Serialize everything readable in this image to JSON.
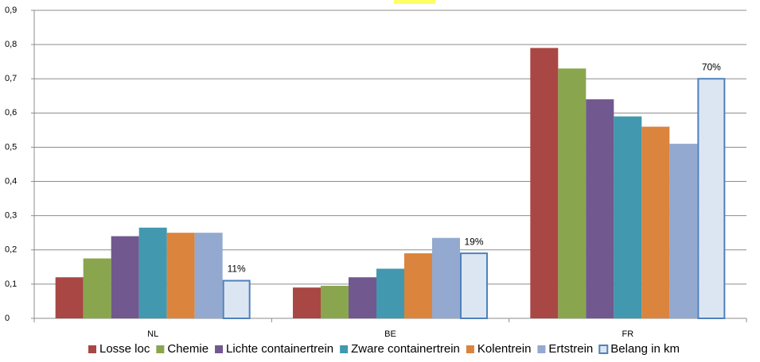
{
  "chart_data": {
    "type": "bar",
    "categories": [
      "NL",
      "BE",
      "FR"
    ],
    "series": [
      {
        "name": "Losse loc",
        "color": "#a94744",
        "values": [
          0.12,
          0.09,
          0.79
        ]
      },
      {
        "name": "Chemie",
        "color": "#89a64e",
        "values": [
          0.175,
          0.095,
          0.73
        ]
      },
      {
        "name": "Lichte containertrein",
        "color": "#71588f",
        "values": [
          0.24,
          0.12,
          0.64
        ]
      },
      {
        "name": "Zware containertrein",
        "color": "#4198af",
        "values": [
          0.265,
          0.145,
          0.59
        ]
      },
      {
        "name": "Kolentrein",
        "color": "#db843d",
        "values": [
          0.25,
          0.19,
          0.56
        ]
      },
      {
        "name": "Ertstrein",
        "color": "#93a9cf",
        "values": [
          0.25,
          0.235,
          0.51
        ]
      },
      {
        "name": "Belang in km",
        "color": "#dce6f2",
        "edge": "#4f81bd",
        "values": [
          0.11,
          0.19,
          0.7
        ],
        "value_labels": [
          "11%",
          "19%",
          "70%"
        ]
      }
    ],
    "ylim": [
      0,
      0.9
    ],
    "yticks": [
      0,
      {
        "value": 0.1,
        "label": "0,1"
      },
      {
        "value": 0.2,
        "label": "0,2"
      },
      {
        "value": 0.3,
        "label": "0,3"
      },
      {
        "value": 0.4,
        "label": "0,4"
      },
      {
        "value": 0.5,
        "label": "0,5"
      },
      {
        "value": 0.6,
        "label": "0,6"
      },
      {
        "value": 0.7,
        "label": "0,7"
      },
      {
        "value": 0.8,
        "label": "0,8"
      },
      {
        "value": 0.9,
        "label": "0,9"
      }
    ],
    "grid": true,
    "legend": "bottom"
  }
}
